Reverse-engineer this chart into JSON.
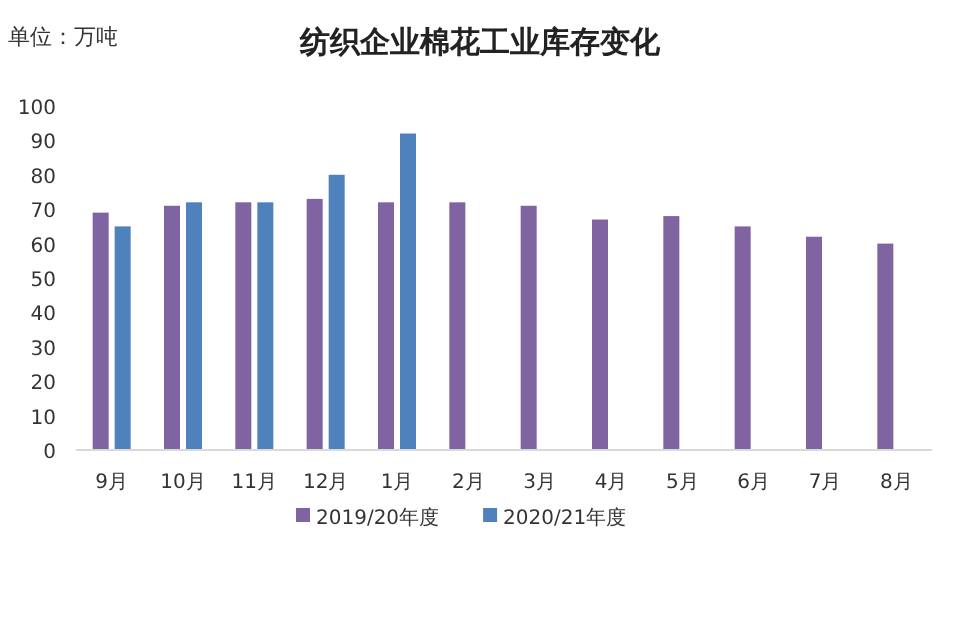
{
  "chart_data": {
    "type": "bar",
    "title": "纺织企业棉花工业库存变化",
    "ylabel": "单位：万吨",
    "categories": [
      "9月",
      "10月",
      "11月",
      "12月",
      "1月",
      "2月",
      "3月",
      "4月",
      "5月",
      "6月",
      "7月",
      "8月"
    ],
    "series": [
      {
        "name": "2019/20年度",
        "color": "#8064a2",
        "values": [
          69,
          71,
          72,
          73,
          72,
          72,
          71,
          67,
          68,
          65,
          62,
          60
        ]
      },
      {
        "name": "2020/21年度",
        "color": "#4f81bd",
        "values": [
          65,
          72,
          72,
          80,
          92,
          null,
          null,
          null,
          null,
          null,
          null,
          null
        ]
      }
    ],
    "ylim": [
      0,
      100
    ],
    "yticks": [
      0,
      10,
      20,
      30,
      40,
      50,
      60,
      70,
      80,
      90,
      100
    ],
    "grid": false,
    "legend": "bottom"
  }
}
